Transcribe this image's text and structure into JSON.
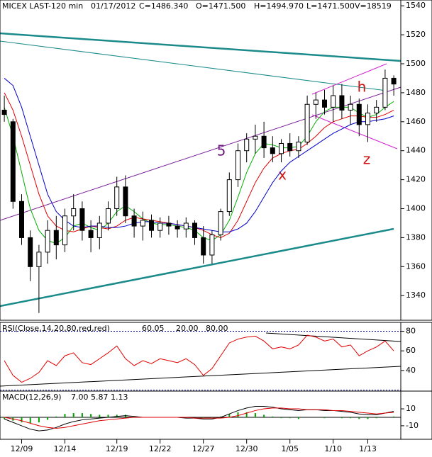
{
  "chart_data": [
    {
      "type": "candlestick",
      "header": [
        {
          "text": "MICEX LAST-120 min",
          "color": "#000000"
        },
        {
          "text": "01/17/2012",
          "color": "#000000"
        },
        {
          "text": "C=1486.340",
          "color": "#2a8a2a"
        },
        {
          "text": "O=1471.500",
          "color": "#000000"
        },
        {
          "text": "H=1494.970",
          "color": "#000000"
        },
        {
          "text": "L=1471.500",
          "color": "#000000"
        },
        {
          "text": "V=18519",
          "color": "#000000"
        }
      ],
      "annotations": [
        {
          "text": "5",
          "color": "#6a1a7a"
        },
        {
          "text": "x",
          "color": "#d01010"
        },
        {
          "text": "h",
          "color": "#d01010"
        },
        {
          "text": "z",
          "color": "#d01010"
        }
      ],
      "categories": [
        null,
        null,
        "12/09",
        null,
        null,
        null,
        null,
        "12/14",
        null,
        null,
        null,
        null,
        null,
        "12/19",
        null,
        null,
        null,
        null,
        "12/22",
        null,
        null,
        null,
        null,
        "12/27",
        null,
        null,
        null,
        null,
        "12/30",
        null,
        null,
        null,
        null,
        "1/05",
        null,
        null,
        null,
        null,
        "1/10",
        null,
        null,
        null,
        "1/13",
        null,
        null,
        null
      ],
      "open": [
        1468,
        1460,
        1405,
        1380,
        1360,
        1370,
        1385,
        1375,
        1395,
        1400,
        1385,
        1380,
        1390,
        1400,
        1415,
        1395,
        1388,
        1392,
        1385,
        1390,
        1388,
        1386,
        1390,
        1380,
        1368,
        1382,
        1398,
        1420,
        1440,
        1448,
        1450,
        1442,
        1438,
        1445,
        1440,
        1446,
        1472,
        1475,
        1470,
        1478,
        1468,
        1472,
        1458,
        1466,
        1470,
        1490
      ],
      "high": [
        1478,
        1462,
        1410,
        1385,
        1375,
        1392,
        1395,
        1400,
        1410,
        1405,
        1392,
        1395,
        1405,
        1422,
        1423,
        1400,
        1398,
        1396,
        1394,
        1395,
        1392,
        1394,
        1392,
        1388,
        1385,
        1400,
        1425,
        1445,
        1452,
        1458,
        1460,
        1450,
        1448,
        1452,
        1450,
        1478,
        1480,
        1482,
        1485,
        1486,
        1478,
        1476,
        1472,
        1475,
        1496,
        1492
      ],
      "low": [
        1460,
        1400,
        1375,
        1350,
        1328,
        1362,
        1365,
        1370,
        1385,
        1378,
        1370,
        1372,
        1385,
        1395,
        1390,
        1380,
        1378,
        1380,
        1380,
        1382,
        1380,
        1380,
        1375,
        1362,
        1362,
        1378,
        1395,
        1415,
        1432,
        1438,
        1435,
        1432,
        1432,
        1436,
        1435,
        1444,
        1462,
        1465,
        1460,
        1462,
        1458,
        1450,
        1446,
        1460,
        1468,
        1478
      ],
      "close": [
        1465,
        1405,
        1380,
        1360,
        1370,
        1385,
        1375,
        1395,
        1400,
        1385,
        1380,
        1390,
        1400,
        1415,
        1395,
        1388,
        1392,
        1385,
        1390,
        1388,
        1386,
        1390,
        1380,
        1368,
        1382,
        1398,
        1420,
        1440,
        1448,
        1450,
        1442,
        1438,
        1445,
        1440,
        1446,
        1472,
        1475,
        1470,
        1478,
        1468,
        1472,
        1458,
        1466,
        1470,
        1490,
        1486
      ],
      "overlays": [
        {
          "color": "#00b000",
          "values": [
            1470,
            1450,
            1425,
            1400,
            1385,
            1378,
            1376,
            1380,
            1388,
            1390,
            1387,
            1385,
            1390,
            1398,
            1402,
            1398,
            1393,
            1390,
            1389,
            1389,
            1388,
            1387,
            1385,
            1380,
            1378,
            1382,
            1392,
            1408,
            1425,
            1438,
            1445,
            1444,
            1442,
            1442,
            1443,
            1450,
            1460,
            1467,
            1470,
            1470,
            1470,
            1466,
            1463,
            1465,
            1470,
            1474
          ]
        },
        {
          "color": "#e00000",
          "values": [
            1480,
            1468,
            1450,
            1430,
            1410,
            1395,
            1388,
            1385,
            1384,
            1386,
            1388,
            1387,
            1386,
            1388,
            1392,
            1394,
            1393,
            1392,
            1391,
            1390,
            1389,
            1388,
            1387,
            1385,
            1382,
            1380,
            1383,
            1392,
            1405,
            1418,
            1428,
            1435,
            1438,
            1440,
            1441,
            1445,
            1450,
            1456,
            1460,
            1462,
            1464,
            1464,
            1463,
            1463,
            1465,
            1468
          ]
        },
        {
          "color": "#0000c8",
          "values": [
            1490,
            1485,
            1470,
            1450,
            1430,
            1410,
            1398,
            1392,
            1388,
            1387,
            1388,
            1388,
            1387,
            1387,
            1388,
            1390,
            1391,
            1391,
            1390,
            1390,
            1389,
            1388,
            1387,
            1386,
            1385,
            1384,
            1384,
            1386,
            1390,
            1398,
            1408,
            1418,
            1426,
            1432,
            1436,
            1440,
            1444,
            1448,
            1452,
            1455,
            1458,
            1460,
            1460,
            1461,
            1462,
            1464
          ]
        }
      ],
      "ylim": [
        1323,
        1544
      ],
      "yticks": [
        1340,
        1360,
        1380,
        1400,
        1420,
        1440,
        1460,
        1480,
        1500,
        1520,
        1540
      ]
    },
    {
      "type": "line",
      "header": [
        {
          "text": "RSI(Close,14,20,80,red,red)",
          "color": "#000000"
        },
        {
          "text": "60.05",
          "color": "#d01010"
        },
        {
          "text": "20.00",
          "color": "#000080"
        },
        {
          "text": "80.00",
          "color": "#000080"
        }
      ],
      "series": [
        {
          "color": "#e00000",
          "values": [
            50,
            35,
            28,
            32,
            38,
            50,
            45,
            55,
            58,
            48,
            46,
            52,
            58,
            65,
            52,
            45,
            50,
            47,
            52,
            50,
            48,
            52,
            46,
            35,
            42,
            55,
            68,
            72,
            74,
            75,
            70,
            62,
            64,
            62,
            66,
            76,
            74,
            70,
            72,
            64,
            66,
            55,
            60,
            64,
            70,
            60
          ]
        }
      ],
      "levels": [
        {
          "value": 80,
          "color": "#000080"
        },
        {
          "value": 20,
          "color": "#000080"
        }
      ],
      "ylim": [
        19,
        89
      ],
      "yticks": [
        40,
        60,
        80
      ]
    },
    {
      "type": "combo",
      "header": [
        {
          "text": "MACD(12,26,9)",
          "color": "#000000"
        },
        {
          "text": "7.00",
          "color": "#d01010"
        },
        {
          "text": "5.87",
          "color": "#000000"
        },
        {
          "text": "1.13",
          "color": "#2a8a2a"
        }
      ],
      "series": [
        {
          "color": "#000000",
          "values": [
            -2,
            -6,
            -10,
            -14,
            -16,
            -15,
            -12,
            -8,
            -5,
            -3,
            -2,
            -1,
            0,
            1,
            2,
            1,
            0,
            0,
            0,
            0,
            0,
            -1,
            -1,
            -2,
            -2,
            0,
            4,
            8,
            11,
            13,
            13,
            12,
            10,
            9,
            8,
            9,
            9,
            8,
            8,
            7,
            6,
            4,
            3,
            3,
            5,
            7
          ]
        },
        {
          "color": "#e00000",
          "values": [
            0,
            -2,
            -4,
            -7,
            -10,
            -12,
            -13,
            -12,
            -10,
            -8,
            -6,
            -4,
            -3,
            -2,
            -1,
            0,
            0,
            0,
            0,
            0,
            0,
            0,
            -1,
            -1,
            -1,
            -1,
            0,
            2,
            5,
            8,
            10,
            11,
            11,
            10,
            10,
            9,
            9,
            9,
            8,
            8,
            7,
            6,
            5,
            4,
            5,
            6
          ]
        }
      ],
      "histogram": {
        "color": "#00a000",
        "values": [
          -2,
          -4,
          -6,
          -7,
          -6,
          -3,
          1,
          4,
          5,
          5,
          4,
          3,
          3,
          3,
          3,
          1,
          0,
          0,
          0,
          0,
          0,
          -1,
          0,
          -1,
          -1,
          1,
          4,
          6,
          6,
          5,
          3,
          1,
          -1,
          -1,
          -2,
          0,
          0,
          -1,
          0,
          -1,
          -1,
          -2,
          -2,
          -1,
          0,
          1
        ]
      },
      "levels": [
        {
          "value": 0,
          "color": "#000000"
        }
      ],
      "ylim": [
        -26,
        31
      ],
      "yticks": [
        -10,
        10
      ]
    }
  ]
}
